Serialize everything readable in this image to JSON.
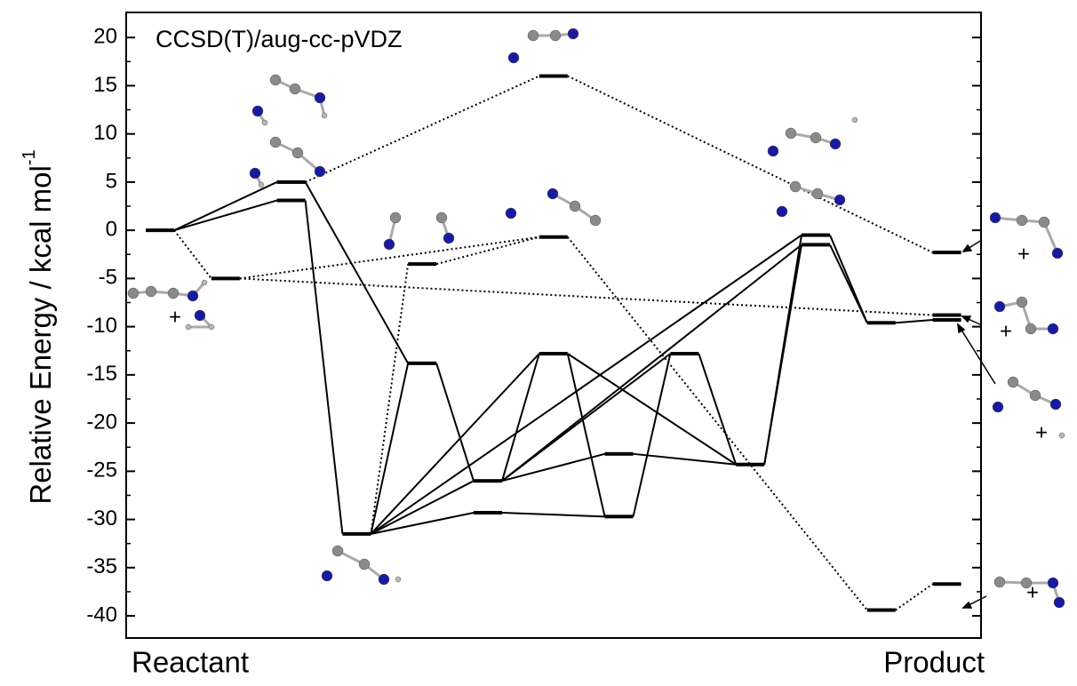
{
  "chart_data": {
    "type": "energy-levels",
    "title": "CCSD(T)/aug-cc-pVDZ",
    "ylabel": "Relative Energy / kcal mol",
    "ylabel_superscript": "-1",
    "x_start_label": "Reactant",
    "x_end_label": "Product",
    "annotations": [
      "+",
      "+",
      "+",
      "+",
      "+"
    ],
    "values": [
      0,
      -5.0,
      5.0,
      3.1,
      -31.5,
      -3.5,
      -13.8,
      -26.0,
      -29.3,
      16.0,
      -0.7,
      -12.8,
      -23.2,
      -29.7,
      -12.8,
      -24.3,
      -0.5,
      -1.5,
      -9.6,
      -39.4,
      -2.3,
      -8.8,
      -9.3,
      -36.7
    ],
    "color": "#000000",
    "ylim": [
      -42.3,
      22.6
    ],
    "yticks": [
      -40,
      -35,
      -30,
      -25,
      -20,
      -15,
      -10,
      -5,
      0,
      5,
      10,
      15,
      20
    ]
  }
}
